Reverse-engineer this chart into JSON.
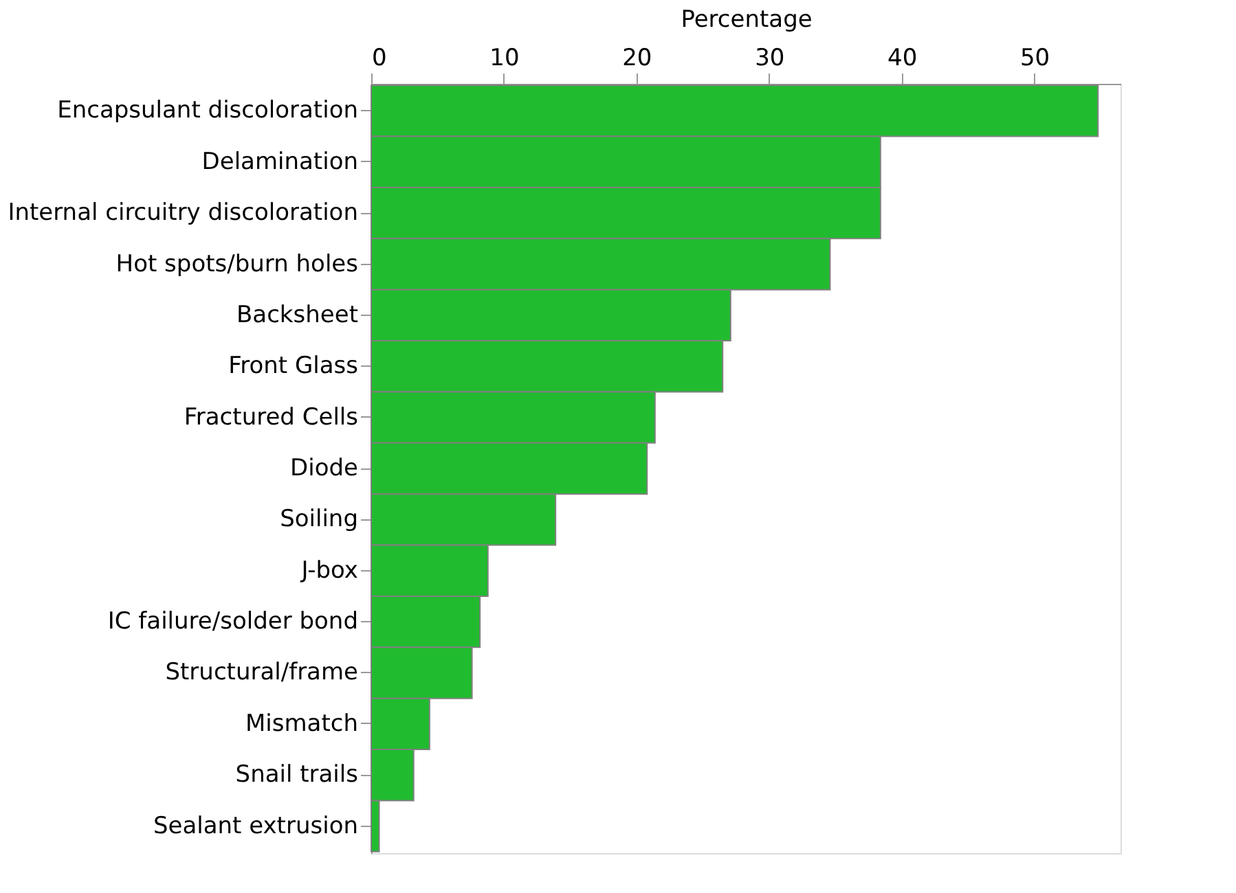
{
  "chart_data": {
    "type": "bar",
    "orientation": "horizontal",
    "xlabel": "Percentage",
    "categories": [
      "Encapsulant discoloration",
      "Delamination",
      "Internal circuitry discoloration",
      "Hot spots/burn holes",
      "Backsheet",
      "Front Glass",
      "Fractured Cells",
      "Diode",
      "Soiling",
      "J-box",
      "IC failure/solder bond",
      "Structural/frame",
      "Mismatch",
      "Snail trails",
      "Sealant extrusion"
    ],
    "values": [
      54.8,
      38.4,
      38.4,
      34.6,
      27.1,
      26.5,
      21.4,
      20.8,
      13.9,
      8.8,
      8.2,
      7.6,
      4.4,
      3.2,
      0.6
    ],
    "color": "#21bb2f",
    "xlim": [
      0,
      56.5
    ],
    "xticks": [
      0,
      10,
      20,
      30,
      40,
      50
    ],
    "grid": false
  }
}
